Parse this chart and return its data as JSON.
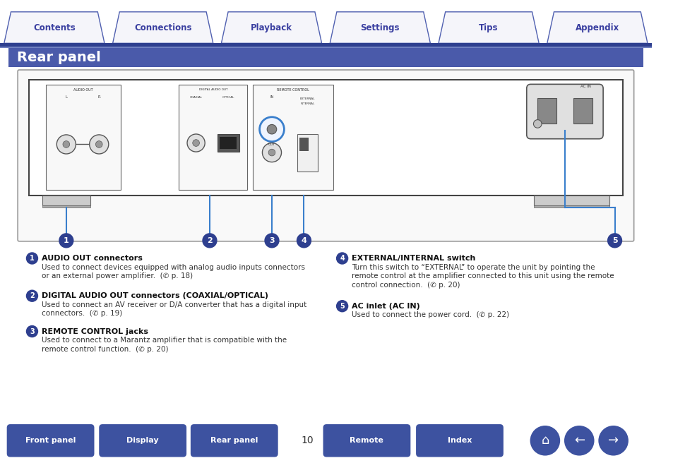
{
  "title": "Rear panel",
  "title_bg": "#4a5aaa",
  "title_text_color": "#ffffff",
  "page_bg": "#ffffff",
  "nav_tabs": [
    "Contents",
    "Connections",
    "Playback",
    "Settings",
    "Tips",
    "Appendix"
  ],
  "nav_tab_text_color": "#3a3fa0",
  "nav_underline_color": "#2e3f8f",
  "bottom_buttons": [
    "Front panel",
    "Display",
    "Rear panel",
    "Remote",
    "Index"
  ],
  "bottom_button_color": "#3d52a0",
  "page_number": "10",
  "descriptions": [
    {
      "num": "1",
      "title": "AUDIO OUT connectors",
      "lines": [
        "Used to connect devices equipped with analog audio inputs connectors",
        "or an external power amplifier.  (✆ p. 18)"
      ]
    },
    {
      "num": "2",
      "title": "DIGITAL AUDIO OUT connectors (COAXIAL/OPTICAL)",
      "lines": [
        "Used to connect an AV receiver or D/A converter that has a digital input",
        "connectors.  (✆ p. 19)"
      ]
    },
    {
      "num": "3",
      "title": "REMOTE CONTROL jacks",
      "lines": [
        "Used to connect to a Marantz amplifier that is compatible with the",
        "remote control function.  (✆ p. 20)"
      ]
    },
    {
      "num": "4",
      "title": "EXTERNAL/INTERNAL switch",
      "lines": [
        "Turn this switch to “EXTERNAL” to operate the unit by pointing the",
        "remote control at the amplifier connected to this unit using the remote",
        "control connection.  (✆ p. 20)"
      ]
    },
    {
      "num": "5",
      "title": "AC inlet (AC IN)",
      "lines": [
        "Used to connect the power cord.  (✆ p. 22)"
      ]
    }
  ],
  "accent_color": "#2e3f8f",
  "line_color": "#3a7fcc"
}
